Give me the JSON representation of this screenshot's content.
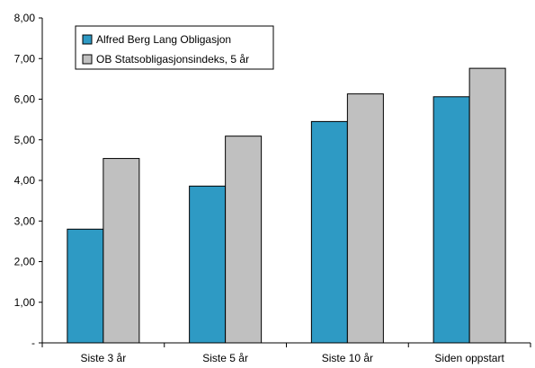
{
  "chart_data": {
    "type": "bar",
    "categories": [
      "Siste 3 år",
      "Siste 5 år",
      "Siste 10 år",
      "Siden oppstart"
    ],
    "series": [
      {
        "name": "Alfred Berg Lang Obligasjon",
        "values": [
          2.8,
          3.86,
          5.45,
          6.06
        ],
        "color": "#2e9ac4"
      },
      {
        "name": "OB Statsobligasjonsindeks, 5 år",
        "values": [
          4.54,
          5.09,
          6.13,
          6.76
        ],
        "color": "#c0c0c0"
      }
    ],
    "y_ticks": [
      0,
      1,
      2,
      3,
      4,
      5,
      6,
      7,
      8
    ],
    "y_tick_labels": [
      "-",
      "1,00",
      "2,00",
      "3,00",
      "4,00",
      "5,00",
      "6,00",
      "7,00",
      "8,00"
    ],
    "ylim": [
      0,
      8
    ],
    "grid": false,
    "legend": "top-left",
    "title": "",
    "xlabel": "",
    "ylabel": ""
  }
}
